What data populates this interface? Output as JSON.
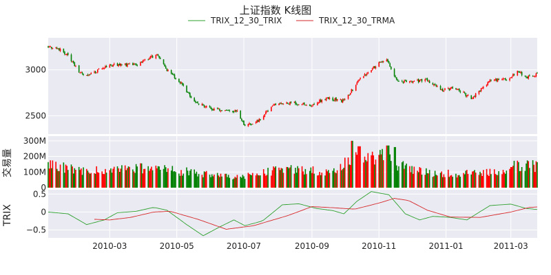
{
  "chart_data": {
    "type": "candlestick+bar+line",
    "title": "上证指数  K线图",
    "x_ticks": [
      "2010-03",
      "2010-05",
      "2010-07",
      "2010-09",
      "2010-11",
      "2011-01",
      "2011-03"
    ],
    "x_tick_dates": [
      "2010-03-01",
      "2010-05-01",
      "2010-07-01",
      "2010-09-01",
      "2010-11-01",
      "2011-01-01",
      "2011-03-01"
    ],
    "x_range": [
      "2010-01-04",
      "2011-03-25"
    ],
    "legend": {
      "placement": "top-center",
      "entries": [
        {
          "name": "TRIX_12_30_TRIX",
          "color": "#2ca02c"
        },
        {
          "name": "TRIX_12_30_TRMA",
          "color": "#d62728"
        }
      ]
    },
    "colors": {
      "up": "#ff0000",
      "down": "#008000",
      "panel_bg": "#eaeaf2",
      "grid": "#ffffff"
    },
    "price": {
      "ylim": [
        2300,
        3350
      ],
      "y_ticks": [
        2500,
        3000
      ],
      "y_tick_labels": [
        "2500",
        "3000"
      ],
      "anchors": [
        [
          "2010-01-04",
          3260
        ],
        [
          "2010-01-13",
          3230
        ],
        [
          "2010-01-22",
          3160
        ],
        [
          "2010-02-02",
          2960
        ],
        [
          "2010-02-10",
          2940
        ],
        [
          "2010-02-26",
          3040
        ],
        [
          "2010-03-10",
          3060
        ],
        [
          "2010-03-25",
          3050
        ],
        [
          "2010-04-05",
          3130
        ],
        [
          "2010-04-14",
          3160
        ],
        [
          "2010-04-22",
          3000
        ],
        [
          "2010-05-05",
          2850
        ],
        [
          "2010-05-17",
          2650
        ],
        [
          "2010-05-31",
          2580
        ],
        [
          "2010-06-15",
          2550
        ],
        [
          "2010-06-25",
          2560
        ],
        [
          "2010-07-02",
          2380
        ],
        [
          "2010-07-15",
          2450
        ],
        [
          "2010-07-28",
          2620
        ],
        [
          "2010-08-15",
          2640
        ],
        [
          "2010-08-31",
          2620
        ],
        [
          "2010-09-15",
          2690
        ],
        [
          "2010-09-30",
          2660
        ],
        [
          "2010-10-15",
          2900
        ],
        [
          "2010-10-27",
          3030
        ],
        [
          "2010-11-08",
          3120
        ],
        [
          "2010-11-17",
          2880
        ],
        [
          "2010-12-01",
          2870
        ],
        [
          "2010-12-15",
          2890
        ],
        [
          "2010-12-28",
          2780
        ],
        [
          "2011-01-10",
          2800
        ],
        [
          "2011-01-24",
          2690
        ],
        [
          "2011-02-10",
          2880
        ],
        [
          "2011-02-28",
          2910
        ],
        [
          "2011-03-07",
          2980
        ],
        [
          "2011-03-17",
          2920
        ],
        [
          "2011-03-25",
          2950
        ]
      ]
    },
    "volume": {
      "ylabel": "交易量",
      "ylim": [
        0,
        330000000
      ],
      "y_ticks": [
        0,
        100000000,
        200000000,
        300000000
      ],
      "y_tick_labels": [
        "0",
        "100M",
        "200M",
        "300M"
      ],
      "anchors": [
        [
          "2010-01-04",
          160000000
        ],
        [
          "2010-02-01",
          110000000
        ],
        [
          "2010-03-01",
          110000000
        ],
        [
          "2010-04-01",
          130000000
        ],
        [
          "2010-05-01",
          110000000
        ],
        [
          "2010-06-01",
          90000000
        ],
        [
          "2010-07-01",
          70000000
        ],
        [
          "2010-08-01",
          120000000
        ],
        [
          "2010-09-01",
          110000000
        ],
        [
          "2010-09-25",
          110000000
        ],
        [
          "2010-10-10",
          230000000
        ],
        [
          "2010-10-20",
          200000000
        ],
        [
          "2010-11-05",
          200000000
        ],
        [
          "2010-11-25",
          130000000
        ],
        [
          "2010-12-15",
          100000000
        ],
        [
          "2011-01-15",
          90000000
        ],
        [
          "2011-02-10",
          100000000
        ],
        [
          "2011-03-10",
          150000000
        ],
        [
          "2011-03-25",
          140000000
        ]
      ],
      "spikes": [
        [
          "2010-10-08",
          300000000
        ],
        [
          "2010-10-14",
          265000000
        ],
        [
          "2010-11-09",
          270000000
        ],
        [
          "2010-11-15",
          260000000
        ]
      ]
    },
    "trix": {
      "ylabel": "TRIX",
      "ylim": [
        -0.72,
        0.62
      ],
      "y_ticks": [
        -0.5,
        0,
        0.5
      ],
      "y_tick_labels": [
        "−0.5",
        "0",
        "0.5"
      ],
      "trix_anchors": [
        [
          "2010-01-04",
          0
        ],
        [
          "2010-01-22",
          -0.05
        ],
        [
          "2010-02-08",
          -0.35
        ],
        [
          "2010-02-24",
          -0.22
        ],
        [
          "2010-03-08",
          -0.02
        ],
        [
          "2010-03-25",
          0.02
        ],
        [
          "2010-04-10",
          0.13
        ],
        [
          "2010-04-22",
          0.05
        ],
        [
          "2010-05-10",
          -0.35
        ],
        [
          "2010-05-25",
          -0.66
        ],
        [
          "2010-06-10",
          -0.4
        ],
        [
          "2010-06-22",
          -0.22
        ],
        [
          "2010-07-02",
          -0.38
        ],
        [
          "2010-07-18",
          -0.25
        ],
        [
          "2010-08-05",
          0.2
        ],
        [
          "2010-08-20",
          0.23
        ],
        [
          "2010-09-05",
          0.1
        ],
        [
          "2010-09-20",
          0.04
        ],
        [
          "2010-09-30",
          -0.05
        ],
        [
          "2010-10-12",
          0.3
        ],
        [
          "2010-10-25",
          0.57
        ],
        [
          "2010-11-10",
          0.48
        ],
        [
          "2010-11-25",
          -0.05
        ],
        [
          "2010-12-08",
          -0.22
        ],
        [
          "2010-12-20",
          -0.12
        ],
        [
          "2011-01-05",
          -0.15
        ],
        [
          "2011-01-20",
          -0.22
        ],
        [
          "2011-02-10",
          0.18
        ],
        [
          "2011-03-01",
          0.22
        ],
        [
          "2011-03-15",
          0.1
        ],
        [
          "2011-03-25",
          0.07
        ]
      ],
      "trma_start": "2010-02-13",
      "trma_anchors": [
        [
          "2010-02-13",
          -0.2
        ],
        [
          "2010-03-01",
          -0.22
        ],
        [
          "2010-03-20",
          -0.15
        ],
        [
          "2010-04-10",
          0.0
        ],
        [
          "2010-04-25",
          0.02
        ],
        [
          "2010-05-20",
          -0.2
        ],
        [
          "2010-06-15",
          -0.48
        ],
        [
          "2010-07-10",
          -0.38
        ],
        [
          "2010-08-10",
          -0.1
        ],
        [
          "2010-09-01",
          0.15
        ],
        [
          "2010-09-20",
          0.12
        ],
        [
          "2010-10-10",
          0.08
        ],
        [
          "2010-11-01",
          0.25
        ],
        [
          "2010-11-15",
          0.38
        ],
        [
          "2010-11-28",
          0.32
        ],
        [
          "2010-12-15",
          0.05
        ],
        [
          "2011-01-05",
          -0.14
        ],
        [
          "2011-02-01",
          -0.15
        ],
        [
          "2011-03-01",
          0.0
        ],
        [
          "2011-03-18",
          0.13
        ],
        [
          "2011-03-25",
          0.14
        ]
      ]
    }
  }
}
